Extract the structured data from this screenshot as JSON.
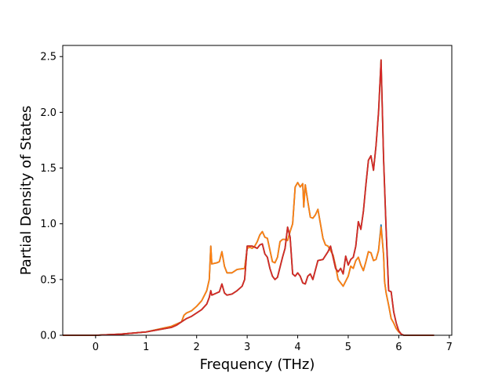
{
  "chart_data": {
    "type": "line",
    "title": "",
    "xlabel": "Frequency (THz)",
    "ylabel": "Partial Density of States",
    "xlim": [
      -0.65,
      7.05
    ],
    "ylim": [
      0.0,
      2.6
    ],
    "xticks": [
      0,
      1,
      2,
      3,
      4,
      5,
      6,
      7
    ],
    "yticks": [
      0.0,
      0.5,
      1.0,
      1.5,
      2.0,
      2.5
    ],
    "xtick_labels": [
      "0",
      "1",
      "2",
      "3",
      "4",
      "5",
      "6",
      "7"
    ],
    "ytick_labels": [
      "0.0",
      "0.5",
      "1.0",
      "1.5",
      "2.0",
      "2.5"
    ],
    "grid": false,
    "legend": "none",
    "series": [
      {
        "color": "#1f77b4",
        "x": [
          -0.65,
          0.0,
          0.5,
          1.0,
          1.5,
          1.7,
          1.75,
          1.8,
          1.9,
          2.0,
          2.1,
          2.2,
          2.25,
          2.28,
          2.3,
          2.4,
          2.45,
          2.5,
          2.55,
          2.6,
          2.7,
          2.8,
          2.95,
          3.0,
          3.05,
          3.1,
          3.15,
          3.2,
          3.25,
          3.3,
          3.35,
          3.4,
          3.5,
          3.55,
          3.6,
          3.65,
          3.7,
          3.75,
          3.8,
          3.85,
          3.9,
          3.95,
          4.0,
          4.05,
          4.1,
          4.12,
          4.15,
          4.2,
          4.25,
          4.3,
          4.35,
          4.4,
          4.45,
          4.5,
          4.55,
          4.6,
          4.7,
          4.75,
          4.8,
          4.85,
          4.9,
          5.0,
          5.05,
          5.1,
          5.15,
          5.2,
          5.25,
          5.3,
          5.35,
          5.4,
          5.45,
          5.5,
          5.55,
          5.6,
          5.65,
          5.7,
          5.72,
          5.75,
          5.8,
          5.85,
          5.9,
          5.95,
          6.0,
          6.05,
          6.1,
          6.7
        ],
        "y": [
          0.0,
          0.0,
          0.01,
          0.03,
          0.08,
          0.12,
          0.18,
          0.2,
          0.22,
          0.26,
          0.31,
          0.4,
          0.5,
          0.8,
          0.64,
          0.65,
          0.66,
          0.75,
          0.62,
          0.56,
          0.56,
          0.59,
          0.6,
          0.78,
          0.79,
          0.78,
          0.8,
          0.84,
          0.9,
          0.93,
          0.88,
          0.87,
          0.66,
          0.65,
          0.7,
          0.84,
          0.86,
          0.86,
          0.85,
          0.93,
          1.0,
          1.33,
          1.37,
          1.33,
          1.36,
          1.15,
          1.35,
          1.2,
          1.06,
          1.05,
          1.08,
          1.13,
          1.0,
          0.87,
          0.81,
          0.8,
          0.72,
          0.62,
          0.5,
          0.47,
          0.44,
          0.53,
          0.62,
          0.6,
          0.67,
          0.7,
          0.63,
          0.58,
          0.66,
          0.75,
          0.74,
          0.67,
          0.68,
          0.76,
          0.99,
          0.72,
          0.48,
          0.38,
          0.27,
          0.15,
          0.11,
          0.06,
          0.03,
          0.01,
          0.0,
          0.0
        ]
      },
      {
        "color": "#ff7f0e",
        "x": [
          -0.65,
          0.0,
          0.5,
          1.0,
          1.5,
          1.7,
          1.75,
          1.8,
          1.9,
          2.0,
          2.1,
          2.2,
          2.25,
          2.28,
          2.3,
          2.4,
          2.45,
          2.5,
          2.55,
          2.6,
          2.7,
          2.8,
          2.95,
          3.0,
          3.05,
          3.1,
          3.15,
          3.2,
          3.25,
          3.3,
          3.35,
          3.4,
          3.5,
          3.55,
          3.6,
          3.65,
          3.7,
          3.75,
          3.8,
          3.85,
          3.9,
          3.95,
          4.0,
          4.05,
          4.1,
          4.12,
          4.15,
          4.2,
          4.25,
          4.3,
          4.35,
          4.4,
          4.45,
          4.5,
          4.55,
          4.6,
          4.7,
          4.75,
          4.8,
          4.85,
          4.9,
          5.0,
          5.05,
          5.1,
          5.15,
          5.2,
          5.25,
          5.3,
          5.35,
          5.4,
          5.45,
          5.5,
          5.55,
          5.6,
          5.65,
          5.7,
          5.72,
          5.75,
          5.8,
          5.85,
          5.9,
          5.95,
          6.0,
          6.05,
          6.1,
          6.7
        ],
        "y": [
          0.0,
          0.0,
          0.01,
          0.03,
          0.08,
          0.12,
          0.18,
          0.2,
          0.22,
          0.26,
          0.31,
          0.4,
          0.5,
          0.8,
          0.64,
          0.65,
          0.66,
          0.75,
          0.62,
          0.56,
          0.56,
          0.59,
          0.6,
          0.78,
          0.79,
          0.78,
          0.8,
          0.84,
          0.9,
          0.93,
          0.88,
          0.87,
          0.66,
          0.65,
          0.7,
          0.84,
          0.86,
          0.86,
          0.85,
          0.93,
          1.0,
          1.33,
          1.37,
          1.33,
          1.36,
          1.15,
          1.35,
          1.2,
          1.06,
          1.05,
          1.08,
          1.13,
          1.0,
          0.87,
          0.81,
          0.8,
          0.72,
          0.62,
          0.5,
          0.47,
          0.44,
          0.53,
          0.62,
          0.6,
          0.67,
          0.7,
          0.63,
          0.58,
          0.66,
          0.75,
          0.74,
          0.67,
          0.68,
          0.76,
          0.97,
          0.72,
          0.48,
          0.38,
          0.27,
          0.15,
          0.11,
          0.06,
          0.03,
          0.01,
          0.0,
          0.0
        ]
      },
      {
        "color": "#2ca02c",
        "x": [
          -0.65,
          0.0,
          0.5,
          1.0,
          1.5,
          1.6,
          1.7,
          1.8,
          1.9,
          2.0,
          2.1,
          2.2,
          2.25,
          2.28,
          2.3,
          2.4,
          2.45,
          2.5,
          2.55,
          2.6,
          2.7,
          2.8,
          2.9,
          2.95,
          3.0,
          3.1,
          3.2,
          3.25,
          3.3,
          3.35,
          3.4,
          3.45,
          3.5,
          3.55,
          3.6,
          3.7,
          3.75,
          3.8,
          3.85,
          3.9,
          3.95,
          4.0,
          4.05,
          4.1,
          4.15,
          4.2,
          4.25,
          4.3,
          4.4,
          4.5,
          4.6,
          4.65,
          4.7,
          4.75,
          4.8,
          4.85,
          4.9,
          4.95,
          5.0,
          5.05,
          5.1,
          5.15,
          5.2,
          5.25,
          5.3,
          5.35,
          5.4,
          5.45,
          5.5,
          5.55,
          5.6,
          5.65,
          5.7,
          5.75,
          5.8,
          5.85,
          5.9,
          5.95,
          6.0,
          6.05,
          6.1,
          6.7
        ],
        "y": [
          0.0,
          0.0,
          0.01,
          0.03,
          0.07,
          0.09,
          0.12,
          0.15,
          0.17,
          0.2,
          0.23,
          0.28,
          0.34,
          0.4,
          0.36,
          0.38,
          0.39,
          0.46,
          0.38,
          0.36,
          0.37,
          0.4,
          0.44,
          0.5,
          0.8,
          0.8,
          0.78,
          0.81,
          0.82,
          0.73,
          0.7,
          0.6,
          0.53,
          0.5,
          0.52,
          0.7,
          0.78,
          0.97,
          0.88,
          0.55,
          0.53,
          0.56,
          0.53,
          0.47,
          0.46,
          0.53,
          0.55,
          0.5,
          0.67,
          0.68,
          0.75,
          0.8,
          0.7,
          0.6,
          0.57,
          0.6,
          0.55,
          0.71,
          0.63,
          0.68,
          0.7,
          0.8,
          1.02,
          0.95,
          1.11,
          1.35,
          1.57,
          1.61,
          1.48,
          1.7,
          2.0,
          2.47,
          1.58,
          0.95,
          0.4,
          0.39,
          0.21,
          0.11,
          0.04,
          0.01,
          0.0,
          0.0
        ]
      },
      {
        "color": "#d62728",
        "x": [
          -0.65,
          0.0,
          0.5,
          1.0,
          1.5,
          1.6,
          1.7,
          1.8,
          1.9,
          2.0,
          2.1,
          2.2,
          2.25,
          2.28,
          2.3,
          2.4,
          2.45,
          2.5,
          2.55,
          2.6,
          2.7,
          2.8,
          2.9,
          2.95,
          3.0,
          3.1,
          3.2,
          3.25,
          3.3,
          3.35,
          3.4,
          3.45,
          3.5,
          3.55,
          3.6,
          3.7,
          3.75,
          3.8,
          3.85,
          3.9,
          3.95,
          4.0,
          4.05,
          4.1,
          4.15,
          4.2,
          4.25,
          4.3,
          4.4,
          4.5,
          4.6,
          4.65,
          4.7,
          4.75,
          4.8,
          4.85,
          4.9,
          4.95,
          5.0,
          5.05,
          5.1,
          5.15,
          5.2,
          5.25,
          5.3,
          5.35,
          5.4,
          5.45,
          5.5,
          5.55,
          5.6,
          5.65,
          5.7,
          5.75,
          5.8,
          5.85,
          5.9,
          5.95,
          6.0,
          6.05,
          6.1,
          6.7
        ],
        "y": [
          0.0,
          0.0,
          0.01,
          0.03,
          0.07,
          0.09,
          0.12,
          0.15,
          0.17,
          0.2,
          0.23,
          0.28,
          0.34,
          0.4,
          0.36,
          0.38,
          0.39,
          0.46,
          0.38,
          0.36,
          0.37,
          0.4,
          0.44,
          0.5,
          0.8,
          0.8,
          0.78,
          0.81,
          0.82,
          0.73,
          0.7,
          0.6,
          0.53,
          0.5,
          0.52,
          0.7,
          0.78,
          0.97,
          0.88,
          0.55,
          0.53,
          0.56,
          0.53,
          0.47,
          0.46,
          0.53,
          0.55,
          0.5,
          0.67,
          0.68,
          0.75,
          0.8,
          0.7,
          0.6,
          0.57,
          0.6,
          0.55,
          0.71,
          0.63,
          0.68,
          0.7,
          0.8,
          1.02,
          0.95,
          1.11,
          1.35,
          1.57,
          1.61,
          1.48,
          1.7,
          2.0,
          2.47,
          1.58,
          0.95,
          0.4,
          0.39,
          0.21,
          0.11,
          0.04,
          0.01,
          0.0,
          0.0
        ]
      }
    ]
  }
}
